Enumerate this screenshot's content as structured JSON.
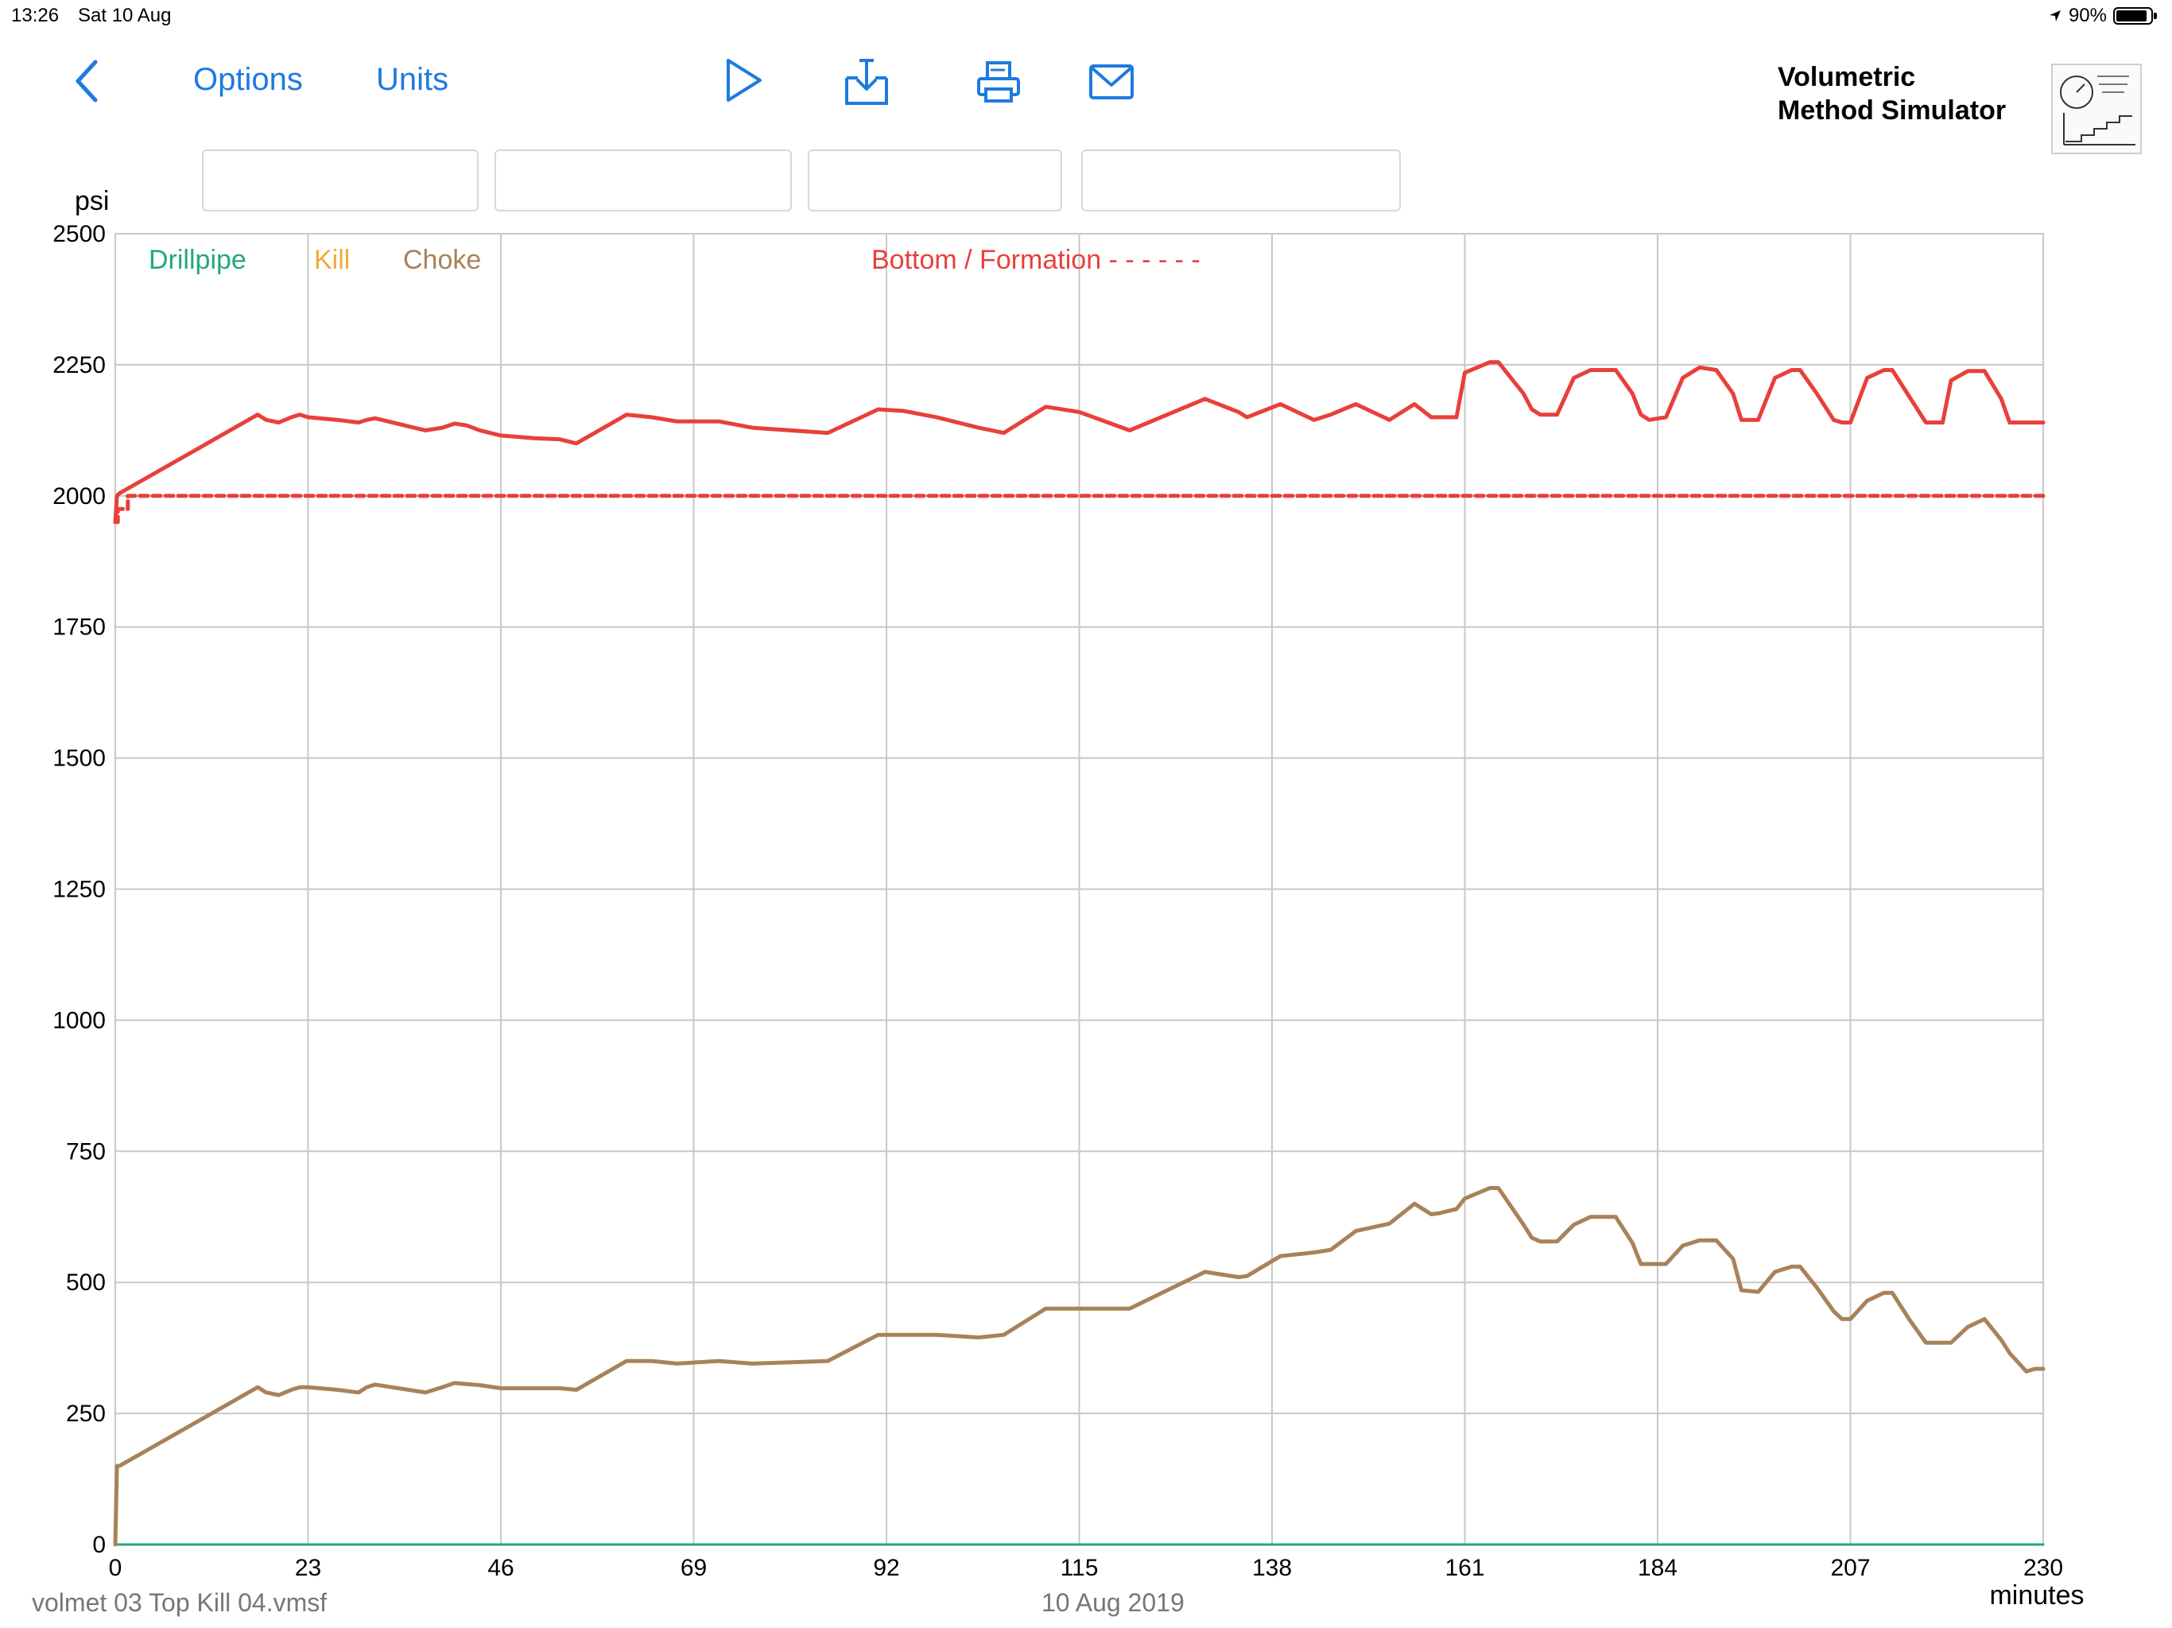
{
  "status_bar": {
    "time": "13:26",
    "date": "Sat 10 Aug",
    "battery": "90%",
    "battery_level": 0.9
  },
  "toolbar": {
    "back_icon": "chevron-left-icon",
    "options_label": "Options",
    "units_label": "Units",
    "icons": [
      "play-icon",
      "export-icon",
      "print-icon",
      "mail-icon"
    ]
  },
  "app": {
    "title_line1": "Volumetric",
    "title_line2": "Method Simulator",
    "logo_icon": "volumetric-logo-icon"
  },
  "fields": [
    "",
    "",
    "",
    ""
  ],
  "footer": {
    "filename": "volmet 03 Top Kill 04.vmsf",
    "date": "10 Aug 2019"
  },
  "colors": {
    "drillpipe": "#22aa77",
    "kill": "#f2a93b",
    "choke": "#a8825a",
    "bottom": "#e8403a",
    "accent": "#1f7ae0",
    "grid": "#c8c8c8"
  },
  "chart_data": {
    "type": "line",
    "ylabel": "psi",
    "xlabel": "minutes",
    "xlim": [
      0,
      230
    ],
    "ylim": [
      0,
      2500
    ],
    "x_ticks": [
      0,
      23,
      46,
      69,
      92,
      115,
      138,
      161,
      184,
      207,
      230
    ],
    "y_ticks": [
      0,
      250,
      500,
      750,
      1000,
      1250,
      1500,
      1750,
      2000,
      2250,
      2500
    ],
    "grid": true,
    "legend": {
      "placement": "top-left",
      "entries": [
        "Drillpipe",
        "Kill",
        "Choke"
      ],
      "bottom_label": "Bottom / Formation - - - - - -"
    },
    "series": [
      {
        "name": "Drillpipe",
        "x": [
          0,
          230
        ],
        "y": [
          0,
          0
        ]
      },
      {
        "name": "Bottom / Formation",
        "line_style": "dashed",
        "x": [
          0,
          0.3,
          0.3,
          1.5,
          1.5,
          3,
          230
        ],
        "y": [
          1950,
          1950,
          1975,
          1975,
          2000,
          2000,
          2000
        ]
      },
      {
        "name": "Bottom",
        "x": [
          0,
          0.2,
          0.5,
          17,
          18,
          19.5,
          21,
          22,
          23,
          26.5,
          29,
          30,
          31,
          37,
          39,
          40.5,
          42,
          43.5,
          46,
          50,
          53,
          55,
          61,
          64,
          67,
          72,
          76,
          85,
          91,
          94,
          98,
          103,
          106,
          111,
          115,
          121,
          130,
          134,
          135,
          139,
          143,
          145,
          148,
          152,
          155,
          157,
          158,
          160,
          161,
          164,
          165,
          168,
          169,
          170,
          172,
          174,
          176,
          177,
          179,
          181,
          182,
          183,
          185,
          187,
          189,
          191,
          193,
          194,
          196,
          198,
          200,
          201,
          203,
          205,
          206,
          207,
          209,
          211,
          212,
          214,
          216,
          218,
          219,
          221,
          223,
          225,
          226,
          228,
          229,
          230
        ],
        "y": [
          1950,
          2000,
          2005,
          2155,
          2145,
          2140,
          2150,
          2155,
          2150,
          2145,
          2140,
          2145,
          2148,
          2125,
          2130,
          2138,
          2134,
          2125,
          2115,
          2110,
          2108,
          2100,
          2155,
          2150,
          2142,
          2142,
          2130,
          2120,
          2165,
          2162,
          2150,
          2130,
          2120,
          2170,
          2160,
          2125,
          2185,
          2160,
          2150,
          2175,
          2145,
          2155,
          2175,
          2145,
          2175,
          2150,
          2150,
          2150,
          2235,
          2255,
          2255,
          2195,
          2165,
          2155,
          2155,
          2225,
          2240,
          2240,
          2240,
          2195,
          2155,
          2145,
          2150,
          2225,
          2245,
          2240,
          2195,
          2145,
          2145,
          2225,
          2240,
          2240,
          2195,
          2145,
          2140,
          2140,
          2225,
          2240,
          2240,
          2190,
          2140,
          2140,
          2220,
          2238,
          2238,
          2185,
          2140,
          2140,
          2140,
          2140
        ]
      },
      {
        "name": "Choke",
        "x": [
          0,
          0.2,
          0.5,
          17,
          18,
          19.5,
          21,
          22,
          23,
          26.5,
          29,
          30,
          31,
          37,
          39,
          40.5,
          42,
          43.5,
          46,
          50,
          53,
          55,
          61,
          64,
          67,
          72,
          76,
          85,
          91,
          94,
          98,
          103,
          106,
          111,
          115,
          121,
          130,
          134,
          135,
          139,
          143,
          145,
          148,
          152,
          155,
          157,
          158,
          160,
          161,
          164,
          165,
          168,
          169,
          170,
          172,
          174,
          176,
          177,
          179,
          181,
          182,
          183,
          185,
          187,
          189,
          191,
          193,
          194,
          196,
          198,
          200,
          201,
          203,
          205,
          206,
          207,
          209,
          211,
          212,
          214,
          216,
          218,
          219,
          221,
          223,
          225,
          226,
          228,
          229,
          230
        ],
        "y": [
          0,
          150,
          150,
          300,
          290,
          285,
          295,
          300,
          300,
          295,
          290,
          300,
          305,
          290,
          300,
          308,
          306,
          304,
          298,
          298,
          298,
          295,
          350,
          350,
          345,
          350,
          345,
          350,
          400,
          400,
          400,
          395,
          400,
          450,
          450,
          450,
          520,
          510,
          512,
          550,
          557,
          562,
          598,
          612,
          650,
          630,
          632,
          640,
          660,
          680,
          680,
          610,
          585,
          578,
          578,
          610,
          625,
          625,
          625,
          575,
          535,
          535,
          535,
          570,
          580,
          580,
          545,
          485,
          482,
          520,
          530,
          530,
          490,
          445,
          430,
          430,
          465,
          480,
          480,
          430,
          385,
          385,
          385,
          415,
          430,
          390,
          365,
          330,
          335,
          335
        ]
      }
    ]
  }
}
